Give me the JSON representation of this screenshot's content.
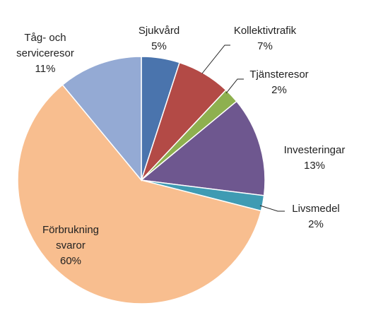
{
  "chart_data": {
    "type": "pie",
    "title": "",
    "legend": "none",
    "start_angle_deg": 0,
    "direction": "clockwise",
    "slices": [
      {
        "label": "Sjukvård",
        "value": 5,
        "display": "5%",
        "color": "#4a74ad"
      },
      {
        "label": "Kollektivtrafik",
        "value": 7,
        "display": "7%",
        "color": "#b34a46"
      },
      {
        "label": "Tjänsteresor",
        "value": 2,
        "display": "2%",
        "color": "#8eb04f"
      },
      {
        "label": "Investeringar",
        "value": 13,
        "display": "13%",
        "color": "#6e578f"
      },
      {
        "label": "Livsmedel",
        "value": 2,
        "display": "2%",
        "color": "#3f9bb3"
      },
      {
        "label": "Förbrukning svaror",
        "value": 60,
        "display": "60%",
        "color": "#f8be8f"
      },
      {
        "label": "Tåg- och serviceresor",
        "value": 11,
        "display": "11%",
        "color": "#94aad4"
      }
    ]
  }
}
